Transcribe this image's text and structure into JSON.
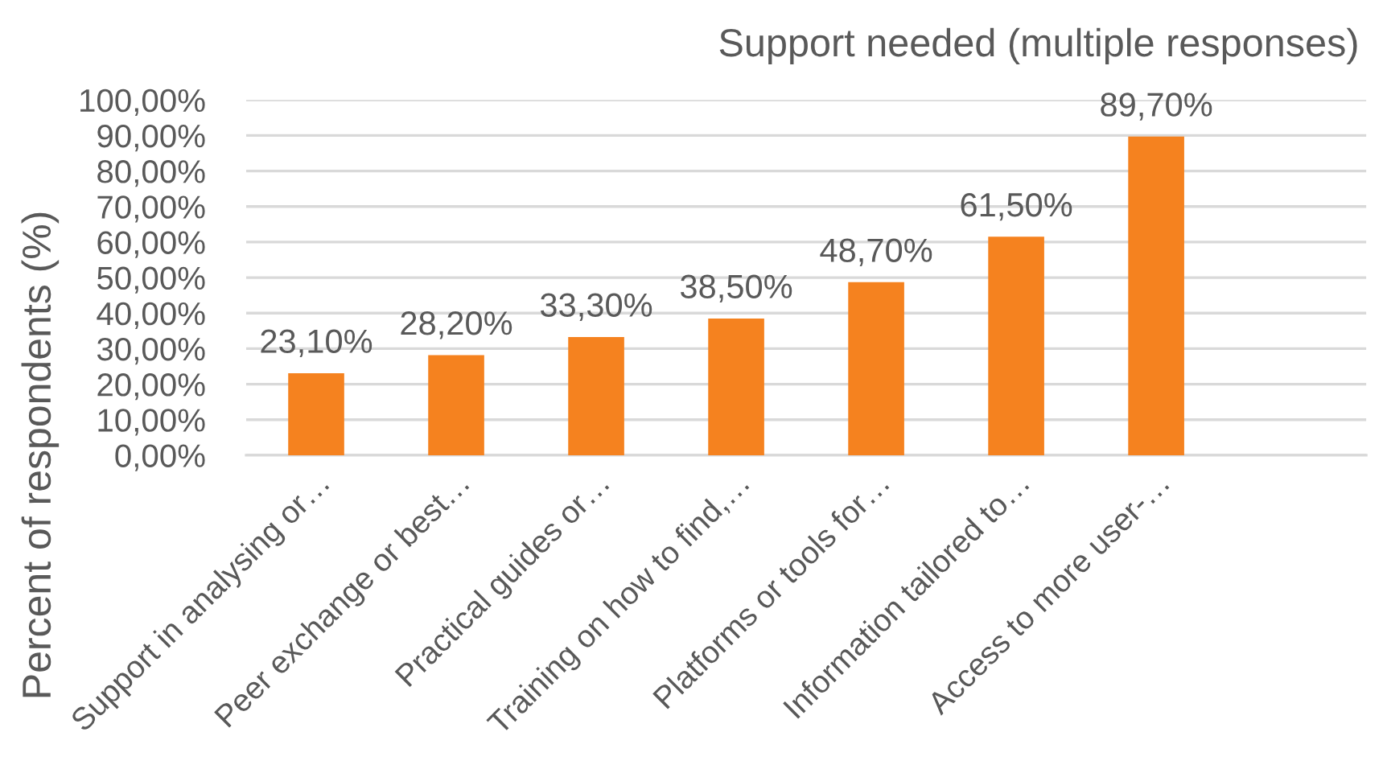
{
  "chart_data": {
    "type": "bar",
    "title": "Support needed (multiple responses)",
    "ylabel": "Percent of respondents (%)",
    "categories": [
      "Support in analysing or…",
      "Peer exchange or best…",
      "Practical guides or…",
      "Training on how to find,…",
      "Platforms or tools for…",
      "Information tailored to…",
      "Access to more user-…",
      null
    ],
    "values": [
      23.1,
      28.2,
      33.3,
      38.5,
      48.7,
      61.5,
      89.7,
      null
    ],
    "color": "#f5821f",
    "value_labels": [
      "23,10%",
      "28,20%",
      "33,30%",
      "38,50%",
      "48,70%",
      "61,50%",
      "89,70%",
      null
    ],
    "ylim": [
      0,
      100
    ],
    "yticks": [
      {
        "value": 0,
        "label": "0,00%"
      },
      {
        "value": 10,
        "label": "10,00%"
      },
      {
        "value": 20,
        "label": "20,00%"
      },
      {
        "value": 30,
        "label": "30,00%"
      },
      {
        "value": 40,
        "label": "40,00%"
      },
      {
        "value": 50,
        "label": "50,00%"
      },
      {
        "value": 60,
        "label": "60,00%"
      },
      {
        "value": 70,
        "label": "70,00%"
      },
      {
        "value": 80,
        "label": "80,00%"
      },
      {
        "value": 90,
        "label": "90,00%"
      },
      {
        "value": 100,
        "label": "100,00%"
      }
    ],
    "grid": "y",
    "legend": false
  }
}
